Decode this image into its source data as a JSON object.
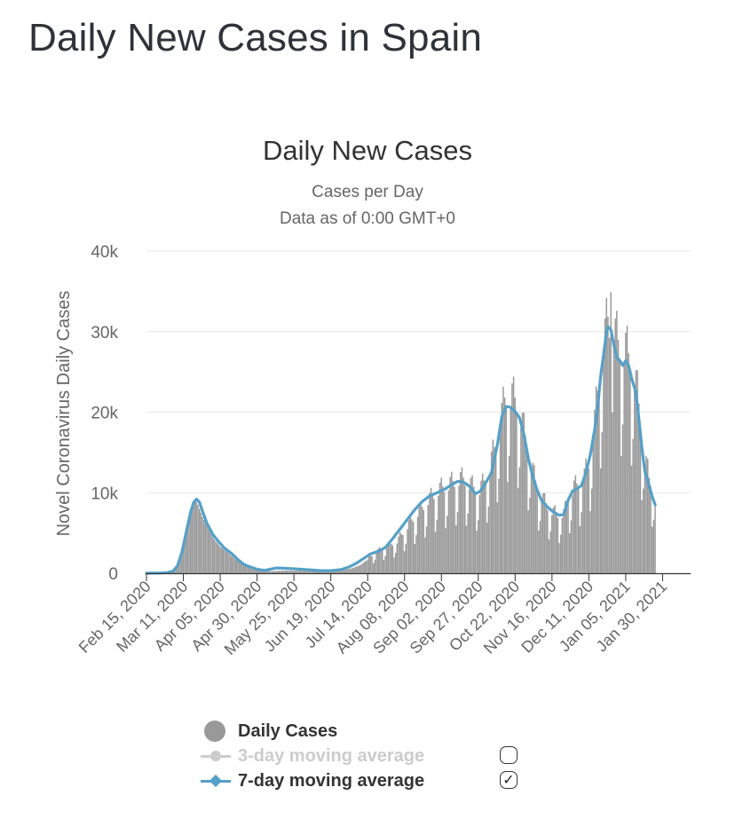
{
  "page": {
    "title": "Daily New Cases in Spain"
  },
  "chart_data": {
    "type": "bar",
    "title": "Daily New Cases",
    "subtitle_line1": "Cases per Day",
    "subtitle_line2": "Data as of 0:00 GMT+0",
    "ylabel": "Novel Coronavirus Daily Cases",
    "xlabel": "",
    "ylim": [
      0,
      40000
    ],
    "yticks": [
      {
        "value": 0,
        "label": "0"
      },
      {
        "value": 10000,
        "label": "10k"
      },
      {
        "value": 20000,
        "label": "20k"
      },
      {
        "value": 30000,
        "label": "30k"
      },
      {
        "value": 40000,
        "label": "40k"
      }
    ],
    "grid": true,
    "x_start": "Feb 15, 2020",
    "x_days": 369,
    "xticks": [
      {
        "day": 0,
        "label": "Feb 15, 2020"
      },
      {
        "day": 25,
        "label": "Mar 11, 2020"
      },
      {
        "day": 50,
        "label": "Apr 05, 2020"
      },
      {
        "day": 75,
        "label": "Apr 30, 2020"
      },
      {
        "day": 100,
        "label": "May 25, 2020"
      },
      {
        "day": 125,
        "label": "Jun 19, 2020"
      },
      {
        "day": 150,
        "label": "Jul 14, 2020"
      },
      {
        "day": 175,
        "label": "Aug 08, 2020"
      },
      {
        "day": 200,
        "label": "Sep 02, 2020"
      },
      {
        "day": 225,
        "label": "Sep 27, 2020"
      },
      {
        "day": 250,
        "label": "Oct 22, 2020"
      },
      {
        "day": 275,
        "label": "Nov 16, 2020"
      },
      {
        "day": 300,
        "label": "Dec 11, 2020"
      },
      {
        "day": 325,
        "label": "Jan 05, 2021"
      },
      {
        "day": 350,
        "label": "Jan 30, 2021"
      }
    ],
    "series": [
      {
        "name": "Daily Cases",
        "kind": "bar",
        "color": "#999999",
        "visible": true,
        "anchors": [
          [
            0,
            0
          ],
          [
            12,
            60
          ],
          [
            18,
            200
          ],
          [
            22,
            1500
          ],
          [
            25,
            3500
          ],
          [
            28,
            6000
          ],
          [
            31,
            8000
          ],
          [
            33,
            9200
          ],
          [
            35,
            8500
          ],
          [
            38,
            7000
          ],
          [
            42,
            5500
          ],
          [
            46,
            4200
          ],
          [
            50,
            3300
          ],
          [
            55,
            2600
          ],
          [
            60,
            1800
          ],
          [
            65,
            1200
          ],
          [
            70,
            700
          ],
          [
            75,
            400
          ],
          [
            80,
            300
          ],
          [
            85,
            250
          ],
          [
            90,
            300
          ],
          [
            95,
            330
          ],
          [
            100,
            300
          ],
          [
            105,
            320
          ],
          [
            110,
            290
          ],
          [
            115,
            280
          ],
          [
            120,
            260
          ],
          [
            125,
            330
          ],
          [
            130,
            360
          ],
          [
            135,
            420
          ],
          [
            140,
            650
          ],
          [
            145,
            1000
          ],
          [
            150,
            1700
          ],
          [
            155,
            2400
          ],
          [
            160,
            2900
          ],
          [
            165,
            3300
          ],
          [
            170,
            3700
          ],
          [
            175,
            5000
          ],
          [
            180,
            6200
          ],
          [
            185,
            7200
          ],
          [
            190,
            8300
          ],
          [
            195,
            9200
          ],
          [
            200,
            9900
          ],
          [
            205,
            10300
          ],
          [
            210,
            10800
          ],
          [
            215,
            11000
          ],
          [
            220,
            10300
          ],
          [
            225,
            9400
          ],
          [
            228,
            10300
          ],
          [
            232,
            11800
          ],
          [
            236,
            14500
          ],
          [
            240,
            17500
          ],
          [
            243,
            20200
          ],
          [
            246,
            20800
          ],
          [
            250,
            20200
          ],
          [
            253,
            18800
          ],
          [
            256,
            16600
          ],
          [
            260,
            13400
          ],
          [
            263,
            11200
          ],
          [
            266,
            9600
          ],
          [
            270,
            8300
          ],
          [
            275,
            7200
          ],
          [
            280,
            6800
          ],
          [
            283,
            6900
          ],
          [
            286,
            8700
          ],
          [
            290,
            10000
          ],
          [
            294,
            10600
          ],
          [
            297,
            11300
          ],
          [
            300,
            13000
          ],
          [
            303,
            16000
          ],
          [
            306,
            21000
          ],
          [
            309,
            25000
          ],
          [
            311,
            27500
          ],
          [
            313,
            29500
          ],
          [
            315,
            29000
          ],
          [
            318,
            27500
          ],
          [
            321,
            26500
          ],
          [
            324,
            26300
          ],
          [
            327,
            25300
          ],
          [
            330,
            23800
          ],
          [
            333,
            21000
          ],
          [
            335,
            18000
          ],
          [
            338,
            13500
          ],
          [
            341,
            11000
          ],
          [
            343,
            10500
          ],
          [
            344,
            9500
          ],
          [
            345,
            8800
          ]
        ],
        "peak": {
          "day": 315,
          "value": 34900
        },
        "weekly_dips": true
      },
      {
        "name": "3-day moving average",
        "kind": "line",
        "color": "#cccccc",
        "visible": false
      },
      {
        "name": "7-day moving average",
        "kind": "line",
        "color": "#55a0c8",
        "visible": true,
        "points": [
          [
            0,
            0
          ],
          [
            10,
            30
          ],
          [
            14,
            80
          ],
          [
            18,
            250
          ],
          [
            21,
            900
          ],
          [
            24,
            2600
          ],
          [
            27,
            5200
          ],
          [
            30,
            7600
          ],
          [
            32,
            8800
          ],
          [
            34,
            9200
          ],
          [
            36,
            8800
          ],
          [
            38,
            7700
          ],
          [
            41,
            6200
          ],
          [
            45,
            4800
          ],
          [
            49,
            3900
          ],
          [
            53,
            3100
          ],
          [
            58,
            2400
          ],
          [
            62,
            1700
          ],
          [
            66,
            1100
          ],
          [
            70,
            800
          ],
          [
            75,
            500
          ],
          [
            80,
            350
          ],
          [
            84,
            500
          ],
          [
            88,
            650
          ],
          [
            93,
            620
          ],
          [
            100,
            550
          ],
          [
            110,
            430
          ],
          [
            118,
            320
          ],
          [
            126,
            330
          ],
          [
            132,
            450
          ],
          [
            137,
            750
          ],
          [
            142,
            1200
          ],
          [
            147,
            1800
          ],
          [
            152,
            2400
          ],
          [
            157,
            2700
          ],
          [
            162,
            3200
          ],
          [
            167,
            4300
          ],
          [
            172,
            5500
          ],
          [
            177,
            6700
          ],
          [
            182,
            7900
          ],
          [
            187,
            8900
          ],
          [
            192,
            9600
          ],
          [
            197,
            10000
          ],
          [
            202,
            10400
          ],
          [
            207,
            11000
          ],
          [
            211,
            11400
          ],
          [
            215,
            11300
          ],
          [
            219,
            10800
          ],
          [
            223,
            9900
          ],
          [
            226,
            10100
          ],
          [
            230,
            11200
          ],
          [
            234,
            12500
          ],
          [
            238,
            16000
          ],
          [
            241,
            19500
          ],
          [
            244,
            20700
          ],
          [
            247,
            20600
          ],
          [
            250,
            20100
          ],
          [
            253,
            19300
          ],
          [
            256,
            17200
          ],
          [
            259,
            14200
          ],
          [
            262,
            12000
          ],
          [
            265,
            10300
          ],
          [
            268,
            9000
          ],
          [
            272,
            8200
          ],
          [
            276,
            7600
          ],
          [
            280,
            7200
          ],
          [
            283,
            7300
          ],
          [
            286,
            9100
          ],
          [
            289,
            10200
          ],
          [
            292,
            10500
          ],
          [
            295,
            10900
          ],
          [
            298,
            12500
          ],
          [
            301,
            14700
          ],
          [
            304,
            17900
          ],
          [
            306,
            20600
          ],
          [
            308,
            24500
          ],
          [
            310,
            27200
          ],
          [
            312,
            30000
          ],
          [
            313,
            30600
          ],
          [
            315,
            30200
          ],
          [
            317,
            28300
          ],
          [
            319,
            26800
          ],
          [
            321,
            26400
          ],
          [
            323,
            25800
          ],
          [
            325,
            26400
          ],
          [
            327,
            25800
          ],
          [
            329,
            24200
          ],
          [
            332,
            22400
          ],
          [
            334,
            19000
          ],
          [
            336,
            15500
          ],
          [
            338,
            12600
          ],
          [
            341,
            10800
          ],
          [
            343,
            9500
          ],
          [
            345,
            8500
          ]
        ]
      }
    ],
    "legend_position": "bottom"
  },
  "legend": {
    "items": [
      {
        "label": "Daily Cases",
        "color": "#999999",
        "active": true,
        "toggle": ""
      },
      {
        "label": "3-day moving average",
        "color": "#cccccc",
        "active": false,
        "toggle": ""
      },
      {
        "label": "7-day moving average",
        "color": "#55a0c8",
        "active": true,
        "toggle": "✓"
      }
    ]
  }
}
